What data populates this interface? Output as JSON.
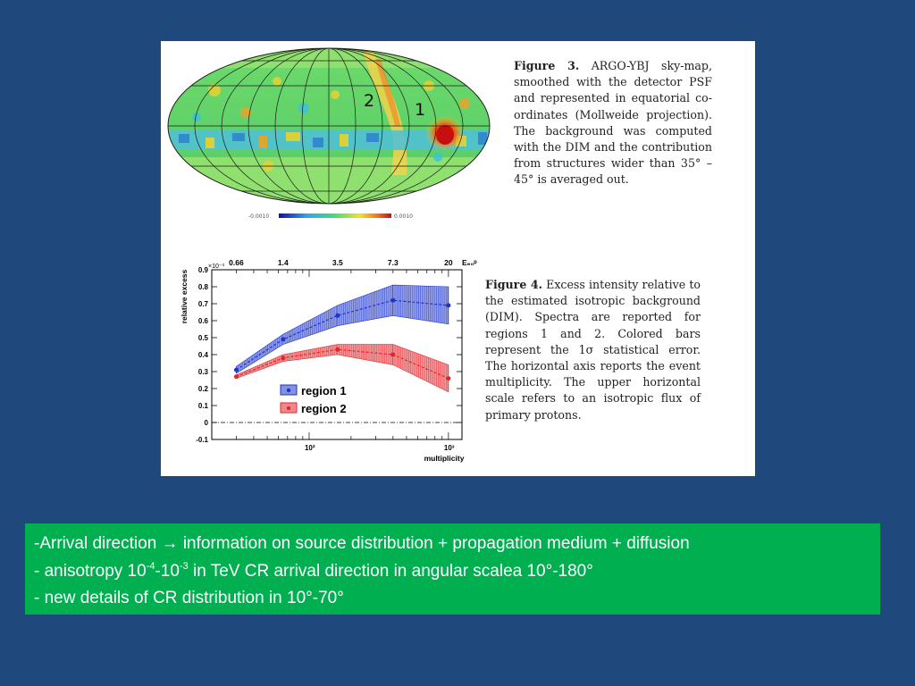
{
  "figure3": {
    "caption_label": "Figure 3.",
    "caption_text": " ARGO-YBJ sky-map, smoothed with the detector PSF and represented in equatorial co-ordinates (Mollweide projection). The background was computed with the DIM and the contribution from structures wider than 35° – 45° is averaged out.",
    "region_label_2": "2",
    "region_label_1": "1",
    "colorbar_min": "-0.0010",
    "colorbar_max": "0.0010"
  },
  "figure4": {
    "caption_label": "Figure 4.",
    "caption_text": " Excess intensity relative to the estimated isotropic background (DIM). Spectra are reported for regions 1 and 2. Colored bars represent the 1σ statistical error. The horizontal axis reports the event multiplicity. The upper horizontal scale refers to an isotropic flux of primary protons."
  },
  "chart_data": {
    "type": "line",
    "ylabel": "relative excess",
    "xlabel": "multiplicity",
    "y_multiplier": "×10⁻³",
    "x_scale": "log",
    "xlim": [
      20,
      1250
    ],
    "ylim": [
      -0.1,
      0.9
    ],
    "yticks": [
      "-0.1",
      "0",
      "0.1",
      "0.2",
      "0.3",
      "0.4",
      "0.5",
      "0.6",
      "0.7",
      "0.8",
      "0.9"
    ],
    "xticks_labels": [
      "10²",
      "10³"
    ],
    "top_axis_label": "E₆₀ᵖ",
    "top_ticks": [
      {
        "label": "0.66",
        "x": 30
      },
      {
        "label": "1.4",
        "x": 65
      },
      {
        "label": "3.5",
        "x": 160
      },
      {
        "label": "7.3",
        "x": 400
      },
      {
        "label": "20",
        "x": 1000
      }
    ],
    "series": [
      {
        "name": "region 1",
        "color": "#1f35c9",
        "x": [
          30,
          65,
          160,
          400,
          1000
        ],
        "values": [
          0.31,
          0.49,
          0.63,
          0.72,
          0.69
        ],
        "err": [
          0.02,
          0.03,
          0.06,
          0.09,
          0.11
        ]
      },
      {
        "name": "region 2",
        "color": "#e3262b",
        "x": [
          30,
          65,
          160,
          400,
          1000
        ],
        "values": [
          0.27,
          0.38,
          0.43,
          0.4,
          0.26
        ],
        "err": [
          0.01,
          0.02,
          0.03,
          0.06,
          0.08
        ]
      }
    ]
  },
  "bullets": {
    "line1_pre": "-Arrival direction ",
    "line1_arrow": "→",
    "line1_post": " information on source distribution + propagation medium + diffusion",
    "line2_a": "-  anisotropy 10",
    "line2_sup1": "-4",
    "line2_b": "-10",
    "line2_sup2": "-3",
    "line2_c": " in TeV CR arrival direction in angular scalea 10°-180°",
    "line3": "- new details of CR distribution in 10°-70°"
  }
}
